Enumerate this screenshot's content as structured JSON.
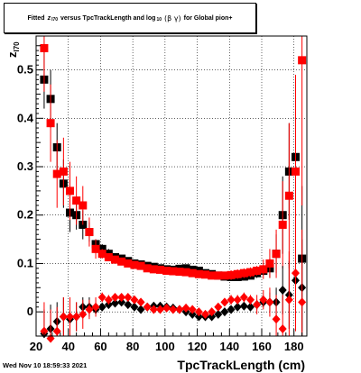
{
  "title": {
    "prefix": "Fitted",
    "z": "z",
    "z_sub": "I70",
    "middle": "versus TpcTrackLength and log",
    "log_sub": "10",
    "beta_gamma": "(β  γ)",
    "suffix": "for Global pion+"
  },
  "ylabel": {
    "main": "z",
    "sub": "I70"
  },
  "xlabel": "TpcTrackLength (cm)",
  "footer_date": "Wed Nov 10 18:59:33 2021",
  "chart_data": {
    "type": "scatter",
    "title": "Fitted z_I70 versus TpcTrackLength and log10(β γ) for Global pion+",
    "xlabel": "TpcTrackLength (cm)",
    "ylabel": "z_I70",
    "xlim": [
      20,
      188
    ],
    "ylim": [
      -0.05,
      0.57
    ],
    "xticks": [
      20,
      40,
      60,
      80,
      100,
      120,
      140,
      160,
      180
    ],
    "yticks": [
      0,
      0.1,
      0.2,
      0.3,
      0.4,
      0.5
    ],
    "ytick_labels": [
      "0",
      "0.1",
      "0.2",
      "0.3",
      "0.4",
      "0.5"
    ],
    "grid": true,
    "series": [
      {
        "color": "#000000",
        "marker": "square",
        "points": [
          {
            "x": 25,
            "y": 0.48,
            "e": 0.06
          },
          {
            "x": 29,
            "y": 0.44,
            "e": 0.06
          },
          {
            "x": 33,
            "y": 0.34,
            "e": 0.05
          },
          {
            "x": 37,
            "y": 0.265,
            "e": 0.05
          },
          {
            "x": 41,
            "y": 0.205,
            "e": 0.04
          },
          {
            "x": 45,
            "y": 0.2,
            "e": 0.03
          },
          {
            "x": 49,
            "y": 0.18,
            "e": 0.03
          },
          {
            "x": 53,
            "y": 0.165,
            "e": 0.02
          },
          {
            "x": 57,
            "y": 0.14,
            "e": 0.01
          },
          {
            "x": 61,
            "y": 0.13,
            "e": 0.01
          },
          {
            "x": 65,
            "y": 0.12,
            "e": 0.01
          },
          {
            "x": 69,
            "y": 0.113,
            "e": 0.005
          },
          {
            "x": 73,
            "y": 0.11,
            "e": 0.005
          },
          {
            "x": 77,
            "y": 0.105,
            "e": 0.005
          },
          {
            "x": 81,
            "y": 0.1,
            "e": 0.005
          },
          {
            "x": 85,
            "y": 0.098,
            "e": 0.005
          },
          {
            "x": 89,
            "y": 0.095,
            "e": 0.005
          },
          {
            "x": 93,
            "y": 0.093,
            "e": 0.005
          },
          {
            "x": 97,
            "y": 0.09,
            "e": 0.005
          },
          {
            "x": 101,
            "y": 0.088,
            "e": 0.005
          },
          {
            "x": 105,
            "y": 0.087,
            "e": 0.005
          },
          {
            "x": 109,
            "y": 0.089,
            "e": 0.005
          },
          {
            "x": 113,
            "y": 0.09,
            "e": 0.005
          },
          {
            "x": 117,
            "y": 0.087,
            "e": 0.005
          },
          {
            "x": 121,
            "y": 0.085,
            "e": 0.005
          },
          {
            "x": 125,
            "y": 0.08,
            "e": 0.005
          },
          {
            "x": 129,
            "y": 0.078,
            "e": 0.005
          },
          {
            "x": 133,
            "y": 0.075,
            "e": 0.005
          },
          {
            "x": 137,
            "y": 0.073,
            "e": 0.005
          },
          {
            "x": 141,
            "y": 0.072,
            "e": 0.005
          },
          {
            "x": 145,
            "y": 0.072,
            "e": 0.005
          },
          {
            "x": 149,
            "y": 0.073,
            "e": 0.005
          },
          {
            "x": 153,
            "y": 0.075,
            "e": 0.005
          },
          {
            "x": 157,
            "y": 0.08,
            "e": 0.01
          },
          {
            "x": 161,
            "y": 0.085,
            "e": 0.01
          },
          {
            "x": 165,
            "y": 0.09,
            "e": 0.02
          },
          {
            "x": 169,
            "y": 0.12,
            "e": 0.04
          },
          {
            "x": 173,
            "y": 0.2,
            "e": 0.08
          },
          {
            "x": 177,
            "y": 0.29,
            "e": 0.1
          },
          {
            "x": 181,
            "y": 0.32,
            "e": 0.12
          },
          {
            "x": 185,
            "y": 0.11,
            "e": 0.15
          }
        ]
      },
      {
        "color": "#ff0000",
        "marker": "square",
        "points": [
          {
            "x": 25,
            "y": 0.545,
            "e": 0.09
          },
          {
            "x": 29,
            "y": 0.39,
            "e": 0.08
          },
          {
            "x": 33,
            "y": 0.285,
            "e": 0.07
          },
          {
            "x": 37,
            "y": 0.29,
            "e": 0.07
          },
          {
            "x": 41,
            "y": 0.25,
            "e": 0.06
          },
          {
            "x": 45,
            "y": 0.23,
            "e": 0.05
          },
          {
            "x": 49,
            "y": 0.22,
            "e": 0.04
          },
          {
            "x": 53,
            "y": 0.165,
            "e": 0.03
          },
          {
            "x": 57,
            "y": 0.13,
            "e": 0.02
          },
          {
            "x": 61,
            "y": 0.12,
            "e": 0.01
          },
          {
            "x": 65,
            "y": 0.113,
            "e": 0.005
          },
          {
            "x": 69,
            "y": 0.108,
            "e": 0.005
          },
          {
            "x": 73,
            "y": 0.104,
            "e": 0.005
          },
          {
            "x": 77,
            "y": 0.1,
            "e": 0.005
          },
          {
            "x": 81,
            "y": 0.097,
            "e": 0.005
          },
          {
            "x": 85,
            "y": 0.095,
            "e": 0.005
          },
          {
            "x": 89,
            "y": 0.09,
            "e": 0.005
          },
          {
            "x": 93,
            "y": 0.088,
            "e": 0.005
          },
          {
            "x": 97,
            "y": 0.087,
            "e": 0.005
          },
          {
            "x": 101,
            "y": 0.085,
            "e": 0.005
          },
          {
            "x": 105,
            "y": 0.084,
            "e": 0.005
          },
          {
            "x": 109,
            "y": 0.083,
            "e": 0.005
          },
          {
            "x": 113,
            "y": 0.082,
            "e": 0.005
          },
          {
            "x": 117,
            "y": 0.08,
            "e": 0.005
          },
          {
            "x": 121,
            "y": 0.078,
            "e": 0.005
          },
          {
            "x": 125,
            "y": 0.077,
            "e": 0.005
          },
          {
            "x": 129,
            "y": 0.075,
            "e": 0.005
          },
          {
            "x": 133,
            "y": 0.075,
            "e": 0.005
          },
          {
            "x": 137,
            "y": 0.075,
            "e": 0.005
          },
          {
            "x": 141,
            "y": 0.076,
            "e": 0.01
          },
          {
            "x": 145,
            "y": 0.078,
            "e": 0.01
          },
          {
            "x": 149,
            "y": 0.08,
            "e": 0.01
          },
          {
            "x": 153,
            "y": 0.082,
            "e": 0.01
          },
          {
            "x": 157,
            "y": 0.085,
            "e": 0.01
          },
          {
            "x": 161,
            "y": 0.088,
            "e": 0.02
          },
          {
            "x": 165,
            "y": 0.1,
            "e": 0.03
          },
          {
            "x": 169,
            "y": 0.12,
            "e": 0.05
          },
          {
            "x": 173,
            "y": 0.18,
            "e": 0.09
          },
          {
            "x": 177,
            "y": 0.24,
            "e": 0.15
          },
          {
            "x": 181,
            "y": 0.29,
            "e": 0.2
          },
          {
            "x": 185,
            "y": 0.52,
            "e": 0.3
          }
        ]
      },
      {
        "color": "#000000",
        "marker": "diamond",
        "points": [
          {
            "x": 25,
            "y": -0.045,
            "e": 0.05
          },
          {
            "x": 29,
            "y": -0.035,
            "e": 0.05
          },
          {
            "x": 33,
            "y": -0.02,
            "e": 0.04
          },
          {
            "x": 37,
            "y": -0.01,
            "e": 0.04
          },
          {
            "x": 41,
            "y": -0.015,
            "e": 0.03
          },
          {
            "x": 45,
            "y": -0.01,
            "e": 0.03
          },
          {
            "x": 49,
            "y": 0.01,
            "e": 0.02
          },
          {
            "x": 53,
            "y": 0.01,
            "e": 0.02
          },
          {
            "x": 57,
            "y": 0.005,
            "e": 0.01
          },
          {
            "x": 61,
            "y": 0.01,
            "e": 0.005
          },
          {
            "x": 65,
            "y": 0.015,
            "e": 0.005
          },
          {
            "x": 69,
            "y": 0.018,
            "e": 0.005
          },
          {
            "x": 73,
            "y": 0.02,
            "e": 0.005
          },
          {
            "x": 77,
            "y": 0.015,
            "e": 0.005
          },
          {
            "x": 81,
            "y": 0.01,
            "e": 0.005
          },
          {
            "x": 85,
            "y": 0.005,
            "e": 0.005
          },
          {
            "x": 89,
            "y": 0.01,
            "e": 0.005
          },
          {
            "x": 93,
            "y": 0.012,
            "e": 0.005
          },
          {
            "x": 97,
            "y": 0.012,
            "e": 0.005
          },
          {
            "x": 101,
            "y": 0.01,
            "e": 0.005
          },
          {
            "x": 105,
            "y": 0.008,
            "e": 0.005
          },
          {
            "x": 109,
            "y": 0.005,
            "e": 0.005
          },
          {
            "x": 113,
            "y": 0.0,
            "e": 0.005
          },
          {
            "x": 117,
            "y": -0.005,
            "e": 0.005
          },
          {
            "x": 121,
            "y": -0.01,
            "e": 0.005
          },
          {
            "x": 125,
            "y": -0.01,
            "e": 0.005
          },
          {
            "x": 129,
            "y": -0.01,
            "e": 0.005
          },
          {
            "x": 133,
            "y": -0.005,
            "e": 0.005
          },
          {
            "x": 137,
            "y": 0.0,
            "e": 0.005
          },
          {
            "x": 141,
            "y": 0.005,
            "e": 0.005
          },
          {
            "x": 145,
            "y": 0.01,
            "e": 0.005
          },
          {
            "x": 149,
            "y": 0.012,
            "e": 0.005
          },
          {
            "x": 153,
            "y": 0.01,
            "e": 0.005
          },
          {
            "x": 157,
            "y": 0.015,
            "e": 0.01
          },
          {
            "x": 161,
            "y": 0.02,
            "e": 0.01
          },
          {
            "x": 165,
            "y": 0.02,
            "e": 0.02
          },
          {
            "x": 169,
            "y": 0.02,
            "e": 0.03
          },
          {
            "x": 173,
            "y": 0.045,
            "e": 0.05
          },
          {
            "x": 177,
            "y": 0.035,
            "e": 0.07
          },
          {
            "x": 181,
            "y": 0.065,
            "e": 0.08
          },
          {
            "x": 185,
            "y": 0.05,
            "e": 0.1
          }
        ]
      },
      {
        "color": "#ff0000",
        "marker": "diamond",
        "points": [
          {
            "x": 25,
            "y": -0.04,
            "e": 0.06
          },
          {
            "x": 29,
            "y": -0.055,
            "e": 0.06
          },
          {
            "x": 33,
            "y": -0.04,
            "e": 0.05
          },
          {
            "x": 37,
            "y": -0.01,
            "e": 0.04
          },
          {
            "x": 41,
            "y": -0.01,
            "e": 0.04
          },
          {
            "x": 45,
            "y": -0.01,
            "e": 0.03
          },
          {
            "x": 49,
            "y": -0.005,
            "e": 0.03
          },
          {
            "x": 53,
            "y": 0.005,
            "e": 0.02
          },
          {
            "x": 57,
            "y": 0.01,
            "e": 0.02
          },
          {
            "x": 61,
            "y": 0.03,
            "e": 0.01
          },
          {
            "x": 65,
            "y": 0.025,
            "e": 0.01
          },
          {
            "x": 69,
            "y": 0.03,
            "e": 0.005
          },
          {
            "x": 73,
            "y": 0.03,
            "e": 0.005
          },
          {
            "x": 77,
            "y": 0.03,
            "e": 0.005
          },
          {
            "x": 81,
            "y": 0.025,
            "e": 0.005
          },
          {
            "x": 85,
            "y": 0.02,
            "e": 0.005
          },
          {
            "x": 89,
            "y": 0.01,
            "e": 0.005
          },
          {
            "x": 93,
            "y": 0.005,
            "e": 0.005
          },
          {
            "x": 97,
            "y": 0.005,
            "e": 0.005
          },
          {
            "x": 101,
            "y": 0.008,
            "e": 0.005
          },
          {
            "x": 105,
            "y": 0.005,
            "e": 0.005
          },
          {
            "x": 109,
            "y": 0.005,
            "e": 0.005
          },
          {
            "x": 113,
            "y": 0.008,
            "e": 0.005
          },
          {
            "x": 117,
            "y": 0.005,
            "e": 0.005
          },
          {
            "x": 121,
            "y": 0.0,
            "e": 0.005
          },
          {
            "x": 125,
            "y": -0.005,
            "e": 0.005
          },
          {
            "x": 129,
            "y": 0.0,
            "e": 0.005
          },
          {
            "x": 133,
            "y": 0.01,
            "e": 0.005
          },
          {
            "x": 137,
            "y": 0.02,
            "e": 0.005
          },
          {
            "x": 141,
            "y": 0.025,
            "e": 0.01
          },
          {
            "x": 145,
            "y": 0.025,
            "e": 0.01
          },
          {
            "x": 149,
            "y": 0.03,
            "e": 0.01
          },
          {
            "x": 153,
            "y": 0.025,
            "e": 0.01
          },
          {
            "x": 157,
            "y": 0.015,
            "e": 0.02
          },
          {
            "x": 161,
            "y": 0.025,
            "e": 0.02
          },
          {
            "x": 165,
            "y": 0.02,
            "e": 0.03
          },
          {
            "x": 169,
            "y": -0.015,
            "e": 0.05
          },
          {
            "x": 173,
            "y": -0.035,
            "e": 0.07
          },
          {
            "x": 177,
            "y": 0.025,
            "e": 0.1
          },
          {
            "x": 181,
            "y": 0.08,
            "e": 0.12
          },
          {
            "x": 185,
            "y": 0.02,
            "e": 0.15
          }
        ]
      }
    ]
  }
}
